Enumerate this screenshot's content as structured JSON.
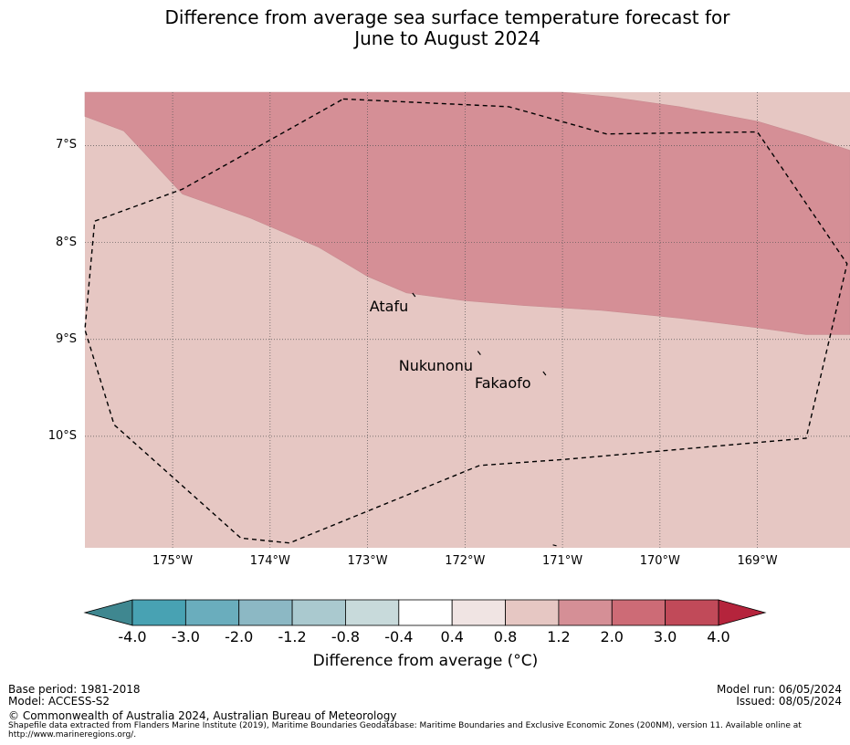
{
  "title": {
    "line1": "Difference from average sea surface temperature forecast for",
    "line2": "June to August 2024"
  },
  "map": {
    "lon_range": [
      -175.9,
      -168.05
    ],
    "lat_range": [
      -11.15,
      -6.45
    ],
    "lat_ticks": [
      {
        "value": -7,
        "label": "7°S"
      },
      {
        "value": -8,
        "label": "8°S"
      },
      {
        "value": -9,
        "label": "9°S"
      },
      {
        "value": -10,
        "label": "10°S"
      }
    ],
    "lon_ticks": [
      {
        "value": -175,
        "label": "175°W"
      },
      {
        "value": -174,
        "label": "174°W"
      },
      {
        "value": -173,
        "label": "173°W"
      },
      {
        "value": -172,
        "label": "172°W"
      },
      {
        "value": -171,
        "label": "171°W"
      },
      {
        "value": -170,
        "label": "170°W"
      },
      {
        "value": -169,
        "label": "169°W"
      }
    ],
    "background_color": "#e6c7c3",
    "warm_zone_color": "#d58f96",
    "warm_zone_boundary": [
      [
        -175.9,
        -6.7
      ],
      [
        -175.5,
        -6.85
      ],
      [
        -174.9,
        -7.5
      ],
      [
        -174.2,
        -7.75
      ],
      [
        -173.5,
        -8.05
      ],
      [
        -173.0,
        -8.35
      ],
      [
        -172.6,
        -8.52
      ],
      [
        -172.0,
        -8.6
      ],
      [
        -171.4,
        -8.65
      ],
      [
        -170.6,
        -8.7
      ],
      [
        -169.8,
        -8.78
      ],
      [
        -169.0,
        -8.88
      ],
      [
        -168.5,
        -8.95
      ],
      [
        -168.05,
        -8.95
      ],
      [
        -168.05,
        -7.05
      ],
      [
        -168.5,
        -6.9
      ],
      [
        -169.0,
        -6.75
      ],
      [
        -169.8,
        -6.6
      ],
      [
        -170.5,
        -6.5
      ],
      [
        -171.0,
        -6.45
      ],
      [
        -175.9,
        -6.45
      ]
    ],
    "eez_boundary": [
      [
        -173.25,
        -6.52
      ],
      [
        -171.55,
        -6.6
      ],
      [
        -170.55,
        -6.88
      ],
      [
        -169.0,
        -6.86
      ],
      [
        -168.6,
        -7.45
      ],
      [
        -168.08,
        -8.22
      ],
      [
        -168.5,
        -10.02
      ],
      [
        -171.0,
        -10.24
      ],
      [
        -171.85,
        -10.3
      ],
      [
        -173.8,
        -11.1
      ],
      [
        -174.3,
        -11.05
      ],
      [
        -175.6,
        -9.88
      ],
      [
        -175.9,
        -8.9
      ],
      [
        -175.8,
        -7.78
      ],
      [
        -174.9,
        -7.45
      ],
      [
        -173.25,
        -6.52
      ]
    ],
    "places": [
      {
        "name": "Atafu",
        "lon": -172.52,
        "lat": -8.55,
        "label_lon": -172.98,
        "label_lat": -8.66
      },
      {
        "name": "Nukunonu",
        "lon": -171.85,
        "lat": -9.15,
        "label_lon": -172.68,
        "label_lat": -9.28
      },
      {
        "name": "Fakaofo",
        "lon": -171.18,
        "lat": -9.36,
        "label_lon": -171.9,
        "label_lat": -9.45
      }
    ],
    "extra_marks": [
      {
        "lon": -171.08,
        "lat": -11.12
      }
    ]
  },
  "colorbar": {
    "label": "Difference from average (°C)",
    "ticks": [
      "-4.0",
      "-3.0",
      "-2.0",
      "-1.2",
      "-0.8",
      "-0.4",
      "0.4",
      "0.8",
      "1.2",
      "2.0",
      "3.0",
      "4.0"
    ],
    "colors": [
      "#48a2b3",
      "#6aadbd",
      "#8cb8c4",
      "#aac9cf",
      "#c8dadb",
      "#ffffff",
      "#f0e4e3",
      "#e6c7c3",
      "#d58f96",
      "#cd6b76",
      "#c14a59"
    ],
    "low_extend_color": "#3f8790",
    "high_extend_color": "#b5243c"
  },
  "footer": {
    "base_period": "Base period: 1981-2018",
    "model": "Model: ACCESS-S2",
    "model_run": "Model run: 06/05/2024",
    "issued": "Issued: 08/05/2024",
    "copyright": "© Commonwealth of Australia 2024, Australian Bureau of Meteorology",
    "shapefile_note": "Shapefile data extracted from Flanders Marine Institute (2019), Maritime Boundaries Geodatabase: Maritime Boundaries and Exclusive Economic Zones (200NM), version 11. Available online at http://www.marineregions.org/."
  }
}
